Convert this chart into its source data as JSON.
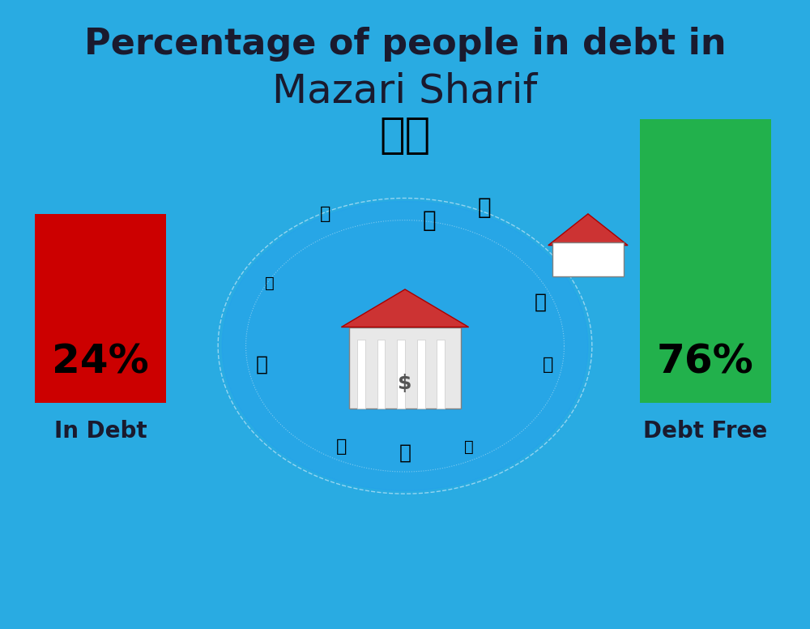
{
  "title_line1": "Percentage of people in debt in",
  "title_line2": "Mazari Sharif",
  "flag_emoji": "🇦🇫",
  "background_color": "#29ABE2",
  "bar1_value": 24,
  "bar1_label": "In Debt",
  "bar1_color": "#CC0000",
  "bar1_pct": "24%",
  "bar2_value": 76,
  "bar2_label": "Debt Free",
  "bar2_color": "#22B14C",
  "bar2_pct": "76%",
  "pct_fontsize": 36,
  "label_fontsize": 20,
  "title1_fontsize": 32,
  "title2_fontsize": 36,
  "text_color": "#1a1a2e",
  "title_color": "#1a1a2e"
}
